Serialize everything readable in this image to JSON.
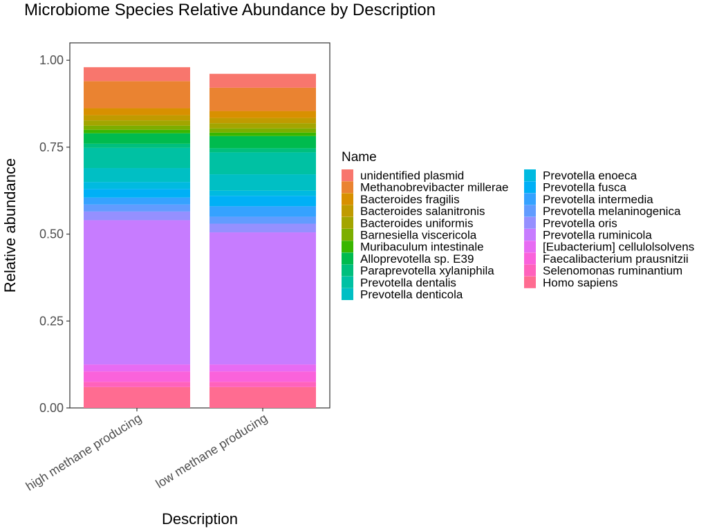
{
  "chart_data": {
    "type": "bar",
    "stacked": true,
    "title": "Microbiome Species Relative Abundance by Description",
    "xlabel": "Description",
    "ylabel": "Relative abundance",
    "ylim": [
      0,
      1.05
    ],
    "y_ticks": [
      "0.00",
      "0.25",
      "0.50",
      "0.75",
      "1.00"
    ],
    "y_tick_values": [
      0,
      0.25,
      0.5,
      0.75,
      1.0
    ],
    "grid": false,
    "legend_position": "right",
    "legend_title": "Name",
    "categories": [
      "high methane producing",
      "low methane producing"
    ],
    "series": [
      {
        "name": "unidentified plasmid",
        "color": "#F8766D",
        "values": [
          0.04,
          0.04
        ]
      },
      {
        "name": "Methanobrevibacter millerae",
        "color": "#EA8331",
        "values": [
          0.078,
          0.067
        ]
      },
      {
        "name": "Bacteroides fragilis",
        "color": "#D89000",
        "values": [
          0.02,
          0.02
        ]
      },
      {
        "name": "Bacteroides salanitronis",
        "color": "#C09B00",
        "values": [
          0.015,
          0.015
        ]
      },
      {
        "name": "Bacteroides uniformis",
        "color": "#A3A500",
        "values": [
          0.015,
          0.015
        ]
      },
      {
        "name": "Barnesiella viscericola",
        "color": "#7CAE00",
        "values": [
          0.012,
          0.012
        ]
      },
      {
        "name": "Muribaculum intestinale",
        "color": "#39B600",
        "values": [
          0.01,
          0.01
        ]
      },
      {
        "name": "Alloprevotella sp. E39",
        "color": "#00BB4E",
        "values": [
          0.03,
          0.035
        ]
      },
      {
        "name": "Paraprevotella xylaniphila",
        "color": "#00BF7D",
        "values": [
          0.012,
          0.012
        ]
      },
      {
        "name": "Prevotella dentalis",
        "color": "#00C1A3",
        "values": [
          0.058,
          0.063
        ]
      },
      {
        "name": "Prevotella denticola",
        "color": "#00BFC4",
        "values": [
          0.04,
          0.047
        ]
      },
      {
        "name": "Prevotella enoeca",
        "color": "#00BAE0",
        "values": [
          0.02,
          0.015
        ]
      },
      {
        "name": "Prevotella fusca",
        "color": "#00B0F6",
        "values": [
          0.025,
          0.03
        ]
      },
      {
        "name": "Prevotella intermedia",
        "color": "#35A2FF",
        "values": [
          0.02,
          0.03
        ]
      },
      {
        "name": "Prevotella melaninogenica",
        "color": "#619CFF",
        "values": [
          0.02,
          0.02
        ]
      },
      {
        "name": "Prevotella oris",
        "color": "#9590FF",
        "values": [
          0.025,
          0.025
        ]
      },
      {
        "name": "Prevotella ruminicola",
        "color": "#C77CFF",
        "values": [
          0.415,
          0.38
        ]
      },
      {
        "name": "[Eubacterium] cellulolsolvens",
        "color": "#E76BF3",
        "values": [
          0.02,
          0.02
        ]
      },
      {
        "name": "Faecalibacterium prausnitzii",
        "color": "#FA62DB",
        "values": [
          0.03,
          0.03
        ]
      },
      {
        "name": "Selenomonas ruminantium",
        "color": "#FF62BC",
        "values": [
          0.015,
          0.015
        ]
      },
      {
        "name": "Homo sapiens",
        "color": "#FF6C91",
        "values": [
          0.06,
          0.06
        ]
      }
    ]
  }
}
